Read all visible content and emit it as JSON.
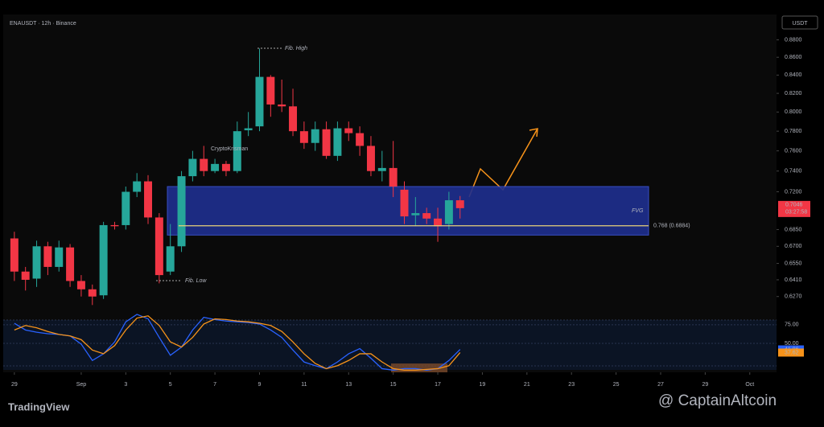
{
  "chart_data": [
    {
      "type": "candlestick",
      "title": "ENAUSDT · 12h · Binance",
      "currency": "USDT",
      "log_scale": true,
      "ylim": [
        0.613,
        0.91
      ],
      "yticks": [
        {
          "value": 0.88,
          "label": "0.8800"
        },
        {
          "value": 0.86,
          "label": "0.8600"
        },
        {
          "value": 0.84,
          "label": "0.8400"
        },
        {
          "value": 0.82,
          "label": "0.8200"
        },
        {
          "value": 0.8,
          "label": "0.8000"
        },
        {
          "value": 0.78,
          "label": "0.7800"
        },
        {
          "value": 0.76,
          "label": "0.7600"
        },
        {
          "value": 0.74,
          "label": "0.7400"
        },
        {
          "value": 0.72,
          "label": "0.7200"
        },
        {
          "value": 0.685,
          "label": "0.6850"
        },
        {
          "value": 0.67,
          "label": "0.6700"
        },
        {
          "value": 0.655,
          "label": "0.6550"
        },
        {
          "value": 0.641,
          "label": "0.6410"
        },
        {
          "value": 0.627,
          "label": "0.6270"
        }
      ],
      "xlim": [
        -1,
        68.4
      ],
      "xticks": [
        {
          "value": 0,
          "label": "29"
        },
        {
          "value": 6,
          "label": "Sep"
        },
        {
          "value": 10,
          "label": "3"
        },
        {
          "value": 14,
          "label": "5"
        },
        {
          "value": 18,
          "label": "7"
        },
        {
          "value": 22,
          "label": "9"
        },
        {
          "value": 26,
          "label": "11"
        },
        {
          "value": 30,
          "label": "13"
        },
        {
          "value": 34,
          "label": "15"
        },
        {
          "value": 38,
          "label": "17"
        },
        {
          "value": 42,
          "label": "19"
        },
        {
          "value": 46,
          "label": "21"
        },
        {
          "value": 50,
          "label": "23"
        },
        {
          "value": 54,
          "label": "25"
        },
        {
          "value": 58,
          "label": "27"
        },
        {
          "value": 62,
          "label": "29"
        },
        {
          "value": 66,
          "label": "Oct"
        }
      ],
      "up_color": "#26a69a",
      "down_color": "#f23645",
      "open": [
        0.677,
        0.648,
        0.642,
        0.67,
        0.652,
        0.669,
        0.64,
        0.633,
        0.628,
        0.689,
        0.689,
        0.72,
        0.73,
        0.696,
        0.648,
        0.67,
        0.735,
        0.752,
        0.74,
        0.747,
        0.74,
        0.781,
        0.785,
        0.838,
        0.808,
        0.806,
        0.78,
        0.768,
        0.782,
        0.755,
        0.783,
        0.778,
        0.765,
        0.74,
        0.743,
        0.722,
        0.698,
        0.7,
        0.695,
        0.69,
        0.712
      ],
      "high": [
        0.683,
        0.652,
        0.675,
        0.674,
        0.675,
        0.672,
        0.645,
        0.637,
        0.692,
        0.692,
        0.725,
        0.738,
        0.736,
        0.7,
        0.69,
        0.74,
        0.76,
        0.765,
        0.752,
        0.75,
        0.79,
        0.8,
        0.87,
        0.84,
        0.835,
        0.825,
        0.79,
        0.79,
        0.79,
        0.79,
        0.79,
        0.785,
        0.775,
        0.76,
        0.77,
        0.73,
        0.715,
        0.705,
        0.705,
        0.72,
        0.716
      ],
      "low": [
        0.64,
        0.632,
        0.635,
        0.645,
        0.648,
        0.635,
        0.627,
        0.62,
        0.625,
        0.685,
        0.685,
        0.715,
        0.69,
        0.638,
        0.645,
        0.665,
        0.73,
        0.735,
        0.738,
        0.735,
        0.738,
        0.775,
        0.78,
        0.795,
        0.8,
        0.775,
        0.762,
        0.76,
        0.752,
        0.75,
        0.77,
        0.755,
        0.735,
        0.73,
        0.715,
        0.69,
        0.688,
        0.69,
        0.674,
        0.685,
        0.695
      ],
      "close": [
        0.648,
        0.641,
        0.67,
        0.652,
        0.669,
        0.64,
        0.633,
        0.627,
        0.689,
        0.688,
        0.72,
        0.73,
        0.696,
        0.645,
        0.67,
        0.735,
        0.752,
        0.74,
        0.747,
        0.74,
        0.78,
        0.783,
        0.838,
        0.808,
        0.806,
        0.78,
        0.768,
        0.782,
        0.755,
        0.783,
        0.778,
        0.765,
        0.74,
        0.743,
        0.725,
        0.697,
        0.7,
        0.695,
        0.688,
        0.712,
        0.7046
      ],
      "countdown": "03:27:58",
      "zone": {
        "label": "FVG",
        "range": [
          0.68,
          0.725
        ],
        "color": "#1f2f8f"
      },
      "level": {
        "label": "0.768 (0.6884)",
        "value": 0.6884,
        "color": "#e8d27a"
      },
      "annotations": [
        "Fib. High",
        "Fib. Low",
        "CryptoKrisman"
      ]
    },
    {
      "type": "line",
      "ylim": [
        10,
        90
      ],
      "yticks": [
        {
          "value": 75,
          "label": "75.00"
        },
        {
          "value": 50,
          "label": "50.00"
        }
      ],
      "series": [
        {
          "color": "#2962ff",
          "values": [
            77,
            68,
            65,
            63,
            62,
            60,
            49,
            27,
            36,
            52,
            79,
            89,
            83,
            58,
            34,
            45,
            68,
            85,
            82,
            80,
            79,
            78,
            76,
            68,
            58,
            41,
            25,
            20,
            16,
            25,
            36,
            43,
            30,
            16,
            14,
            16,
            16,
            14,
            16,
            27,
            41.86
          ]
        },
        {
          "color": "#f7931a",
          "values": [
            68,
            74,
            71,
            66,
            62,
            60,
            55,
            41,
            36,
            47,
            68,
            84,
            87,
            74,
            52,
            45,
            58,
            76,
            83,
            82,
            80,
            79,
            77,
            74,
            66,
            52,
            36,
            23,
            16,
            20,
            27,
            36,
            36,
            25,
            16,
            14,
            14,
            15,
            16,
            20,
            37.62
          ]
        }
      ]
    }
  ],
  "branding": {
    "left": "TradingView",
    "right": "@ CaptainAltcoin"
  }
}
